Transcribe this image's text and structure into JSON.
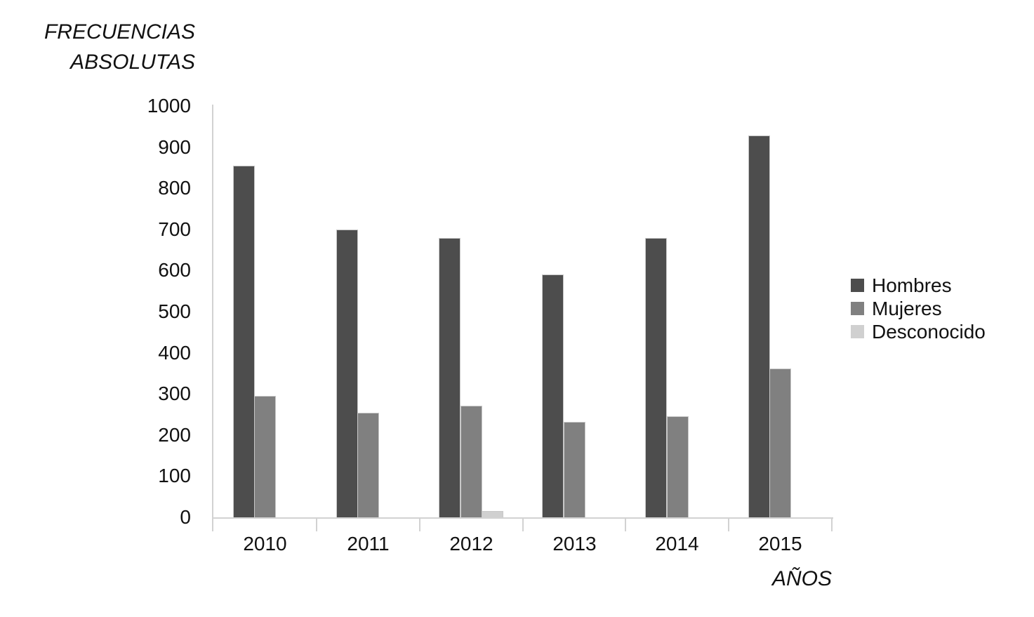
{
  "title": {
    "line1": "FRECUENCIAS",
    "line2": "ABSOLUTAS"
  },
  "axis_labels": {
    "x": "AÑOS",
    "y": "FRECUENCIAS ABSOLUTAS"
  },
  "legend": {
    "items": [
      "Hombres",
      "Mujeres",
      "Desconocido"
    ]
  },
  "colors": {
    "hombres": "#4d4d4d",
    "mujeres": "#808080",
    "desconocido": "#d0d0d0",
    "axis": "#d2d2d2",
    "bar_border": "#c8c8c8",
    "text": "#111111",
    "background": "#ffffff"
  },
  "chart_data": {
    "type": "bar",
    "title": "FRECUENCIAS ABSOLUTAS",
    "xlabel": "AÑOS",
    "ylabel": "FRECUENCIAS ABSOLUTAS",
    "categories": [
      "2010",
      "2011",
      "2012",
      "2013",
      "2014",
      "2015"
    ],
    "series": [
      {
        "name": "Hombres",
        "color": "#4d4d4d",
        "values": [
          855,
          700,
          680,
          590,
          680,
          928
        ]
      },
      {
        "name": "Mujeres",
        "color": "#808080",
        "values": [
          295,
          255,
          272,
          232,
          246,
          362
        ]
      },
      {
        "name": "Desconocido",
        "color": "#d0d0d0",
        "values": [
          0,
          0,
          15,
          0,
          0,
          0
        ]
      }
    ],
    "ylim": [
      0,
      1000
    ],
    "ytick_step": 100,
    "ytick_labels": [
      "0",
      "100",
      "200",
      "300",
      "400",
      "500",
      "600",
      "700",
      "800",
      "900",
      "1000"
    ],
    "grid": false,
    "legend_position": "right"
  }
}
